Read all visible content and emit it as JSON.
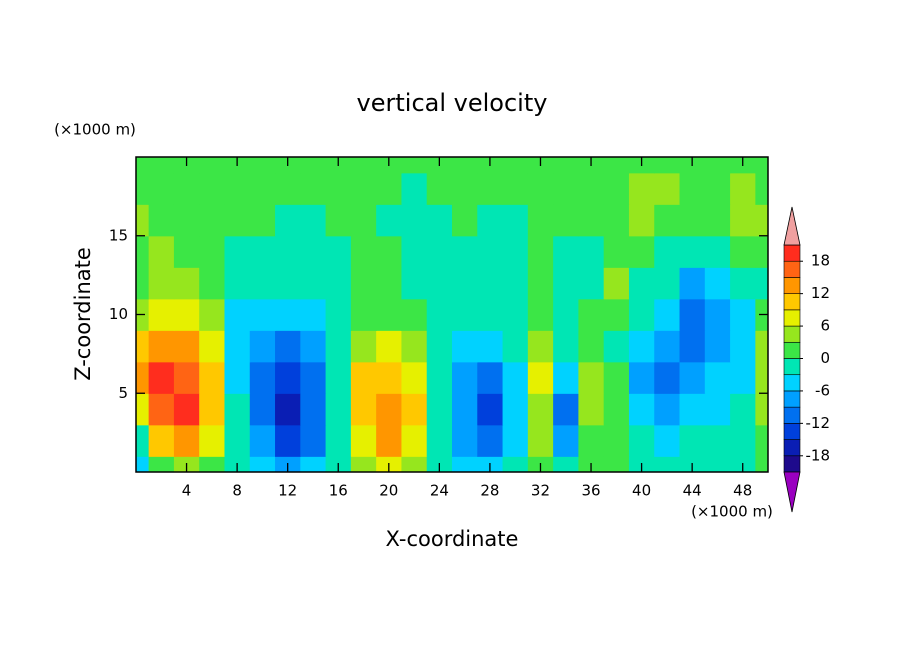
{
  "chart_data": {
    "type": "contour",
    "title": "vertical velocity",
    "xlabel": "X-coordinate",
    "ylabel": "Z-coordinate",
    "x_unit": "(×1000 m)",
    "y_unit": "(×1000 m)",
    "x": [
      0,
      2,
      4,
      6,
      8,
      10,
      12,
      14,
      16,
      18,
      20,
      22,
      24,
      26,
      28,
      30,
      32,
      34,
      36,
      38,
      40,
      42,
      44,
      46,
      48,
      50
    ],
    "y": [
      0,
      2,
      4,
      6,
      8,
      10,
      12,
      14,
      16,
      18,
      20
    ],
    "z": [
      [
        -4,
        2,
        4,
        2,
        -2,
        -5,
        -8,
        -6,
        -3,
        4,
        6,
        3,
        -2,
        -4,
        -6,
        -3,
        2,
        -3,
        0,
        1,
        -1,
        -2,
        -3,
        -2,
        -1,
        0
      ],
      [
        -2,
        10,
        13,
        8,
        -2,
        -9,
        -14,
        -10,
        -3,
        8,
        12,
        8,
        -2,
        -7,
        -12,
        -6,
        3,
        -8,
        2,
        1,
        -3,
        -4,
        -3,
        -3,
        -2,
        1
      ],
      [
        8,
        17,
        18,
        11,
        -3,
        -10,
        -16,
        -12,
        -3,
        11,
        14,
        9,
        -2,
        -8,
        -13,
        -6,
        5,
        -10,
        3,
        2,
        -6,
        -7,
        -5,
        -4,
        -3,
        3
      ],
      [
        12,
        18,
        16,
        9,
        -4,
        -11,
        -14,
        -11,
        -3,
        9,
        11,
        7,
        -2,
        -7,
        -10,
        -5,
        6,
        -5,
        3,
        1,
        -7,
        -10,
        -8,
        -6,
        -4,
        5
      ],
      [
        10,
        14,
        12,
        6,
        -5,
        -8,
        -10,
        -9,
        -3,
        5,
        6,
        4,
        -2,
        -4,
        -6,
        -3,
        4,
        -2,
        1,
        -2,
        -5,
        -9,
        -10,
        -7,
        -4,
        3
      ],
      [
        4,
        8,
        8,
        4,
        -4,
        -5,
        -6,
        -5,
        -2,
        2,
        2,
        1,
        -2,
        -3,
        -3,
        -2,
        2,
        -1,
        0,
        2,
        -3,
        -6,
        -12,
        -9,
        -4,
        0
      ],
      [
        2,
        4,
        5,
        2,
        -3,
        -3,
        -3,
        -3,
        -1,
        1,
        0,
        -1,
        -2,
        -2,
        -2,
        -1,
        1,
        -1,
        -1,
        3,
        -1,
        -3,
        -8,
        -6,
        -2,
        -1
      ],
      [
        2,
        3,
        2,
        1,
        -1,
        -1,
        -1,
        -2,
        -1,
        0,
        0,
        -2,
        -2,
        -2,
        -1,
        -1,
        0,
        -1,
        -2,
        0,
        0,
        -1,
        -3,
        -2,
        2,
        2
      ],
      [
        3,
        2,
        1,
        1,
        1,
        0,
        -1,
        -1,
        0,
        0,
        -1,
        -2,
        -1,
        0,
        -1,
        -1,
        0,
        1,
        0,
        0,
        3,
        2,
        0,
        1,
        4,
        3
      ],
      [
        2,
        1,
        1,
        2,
        1,
        1,
        0,
        0,
        1,
        0,
        0,
        -1,
        0,
        1,
        0,
        0,
        1,
        1,
        0,
        1,
        4,
        3,
        1,
        2,
        3,
        2
      ],
      [
        2,
        1,
        1,
        1,
        1,
        1,
        1,
        1,
        1,
        1,
        1,
        0,
        1,
        1,
        1,
        1,
        1,
        1,
        1,
        1,
        2,
        2,
        1,
        1,
        2,
        2
      ]
    ],
    "xlim": [
      0,
      50
    ],
    "ylim": [
      0,
      20
    ],
    "xticks": [
      4,
      8,
      12,
      16,
      20,
      24,
      28,
      32,
      36,
      40,
      44,
      48
    ],
    "yticks": [
      5,
      10,
      15
    ],
    "levels": [
      -21,
      -18,
      -15,
      -12,
      -9,
      -6,
      -3,
      0,
      3,
      6,
      9,
      12,
      15,
      18,
      21
    ],
    "colors": [
      "#9a00c0",
      "#1e0a8c",
      "#0a1eb4",
      "#0040dc",
      "#0070f0",
      "#00a0ff",
      "#00d2ff",
      "#00e6b4",
      "#3ce646",
      "#96e61e",
      "#e6f000",
      "#ffc800",
      "#ff9600",
      "#ff6414",
      "#ff2d1e",
      "#f0a0a0"
    ],
    "colorbar_ticks": [
      -18,
      -12,
      -6,
      0,
      6,
      12,
      18
    ]
  }
}
